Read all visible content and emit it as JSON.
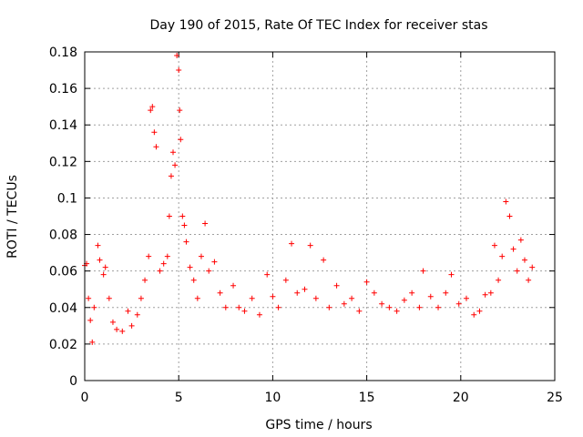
{
  "chart_data": {
    "type": "scatter",
    "title": "Day 190 of 2015, Rate Of TEC Index for receiver stas",
    "xlabel": "GPS time / hours",
    "ylabel": "ROTI / TECUs",
    "xlim": [
      0,
      25
    ],
    "ylim": [
      0,
      0.18
    ],
    "xticks": [
      "0",
      "5",
      "10",
      "15",
      "20",
      "25"
    ],
    "yticks": [
      "0",
      "0.02",
      "0.04",
      "0.06",
      "0.08",
      "0.1",
      "0.12",
      "0.14",
      "0.16",
      "0.18"
    ],
    "grid": true,
    "marker": "+",
    "color": "#ff0000",
    "series": [
      {
        "name": "ROTI",
        "x": [
          0.0,
          0.1,
          0.2,
          0.3,
          0.4,
          0.5,
          0.7,
          0.8,
          1.0,
          1.1,
          1.3,
          1.5,
          1.7,
          2.0,
          2.3,
          2.5,
          2.8,
          3.0,
          3.2,
          3.4,
          3.5,
          3.6,
          3.7,
          3.8,
          4.0,
          4.2,
          4.4,
          4.5,
          4.6,
          4.7,
          4.8,
          4.9,
          5.0,
          5.05,
          5.1,
          5.2,
          5.3,
          5.4,
          5.6,
          5.8,
          6.0,
          6.2,
          6.4,
          6.6,
          6.9,
          7.2,
          7.5,
          7.9,
          8.2,
          8.5,
          8.9,
          9.3,
          9.7,
          10.0,
          10.3,
          10.7,
          11.0,
          11.3,
          11.7,
          12.0,
          12.3,
          12.7,
          13.0,
          13.4,
          13.8,
          14.2,
          14.6,
          15.0,
          15.4,
          15.8,
          16.2,
          16.6,
          17.0,
          17.4,
          17.8,
          18.0,
          18.4,
          18.8,
          19.2,
          19.5,
          19.9,
          20.3,
          20.7,
          21.0,
          21.3,
          21.6,
          21.8,
          22.0,
          22.2,
          22.4,
          22.6,
          22.8,
          23.0,
          23.2,
          23.4,
          23.6,
          23.8
        ],
        "y": [
          0.063,
          0.064,
          0.045,
          0.033,
          0.021,
          0.04,
          0.074,
          0.066,
          0.058,
          0.062,
          0.045,
          0.032,
          0.028,
          0.027,
          0.038,
          0.03,
          0.036,
          0.045,
          0.055,
          0.068,
          0.148,
          0.15,
          0.136,
          0.128,
          0.06,
          0.064,
          0.068,
          0.09,
          0.112,
          0.125,
          0.118,
          0.178,
          0.17,
          0.148,
          0.132,
          0.09,
          0.085,
          0.076,
          0.062,
          0.055,
          0.045,
          0.068,
          0.086,
          0.06,
          0.065,
          0.048,
          0.04,
          0.052,
          0.04,
          0.038,
          0.045,
          0.036,
          0.058,
          0.046,
          0.04,
          0.055,
          0.075,
          0.048,
          0.05,
          0.074,
          0.045,
          0.066,
          0.04,
          0.052,
          0.042,
          0.045,
          0.038,
          0.054,
          0.048,
          0.042,
          0.04,
          0.038,
          0.044,
          0.048,
          0.04,
          0.06,
          0.046,
          0.04,
          0.048,
          0.058,
          0.042,
          0.045,
          0.036,
          0.038,
          0.047,
          0.048,
          0.074,
          0.055,
          0.068,
          0.098,
          0.09,
          0.072,
          0.06,
          0.077,
          0.066,
          0.055,
          0.062
        ]
      }
    ]
  }
}
